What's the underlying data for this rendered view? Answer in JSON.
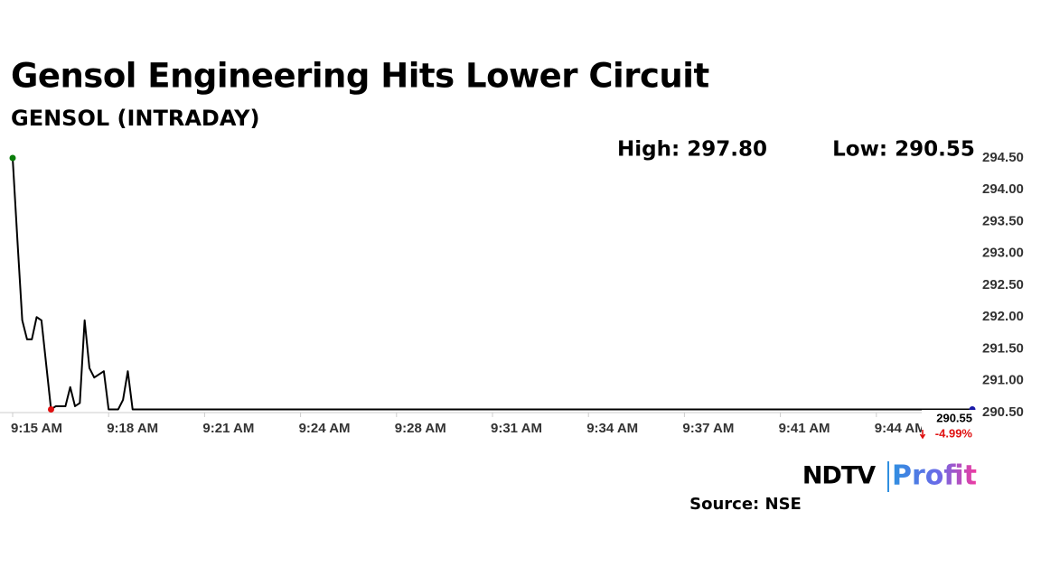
{
  "chart_data": {
    "type": "line",
    "title": "Gensol Engineering Hits Lower Circuit",
    "subtitle": "GENSOL (INTRADAY)",
    "high_label": "High: 297.80",
    "low_label": "Low: 290.55",
    "last_price": 290.55,
    "change_label": "-4.99%",
    "source": "Source: NSE",
    "logo_brand": "NDTV",
    "logo_product": "Profit",
    "color": "#000000",
    "start_color": "#0a7d0a",
    "low_color": "#e01010",
    "end_color": "#1a1aa8",
    "ylim": [
      290.5,
      294.5
    ],
    "yticks": [
      {
        "value": 290.5,
        "label": "290.50"
      },
      {
        "value": 291,
        "label": "291.00"
      },
      {
        "value": 291.5,
        "label": "291.50"
      },
      {
        "value": 292,
        "label": "292.00"
      },
      {
        "value": 292.5,
        "label": "292.50"
      },
      {
        "value": 293,
        "label": "293.00"
      },
      {
        "value": 293.5,
        "label": "293.50"
      },
      {
        "value": 294,
        "label": "294.00"
      },
      {
        "value": 294.5,
        "label": "294.50"
      }
    ],
    "categories": [
      "9:15 AM",
      null,
      null,
      null,
      null,
      null,
      null,
      null,
      null,
      null,
      null,
      null,
      null,
      null,
      null,
      null,
      null,
      null,
      null,
      null,
      "9:18 AM",
      null,
      null,
      null,
      null,
      null,
      null,
      null,
      null,
      null,
      null,
      null,
      null,
      null,
      null,
      null,
      null,
      null,
      null,
      null,
      "9:21 AM",
      null,
      null,
      null,
      null,
      null,
      null,
      null,
      null,
      null,
      null,
      null,
      null,
      null,
      null,
      null,
      null,
      null,
      null,
      null,
      "9:24 AM",
      null,
      null,
      null,
      null,
      null,
      null,
      null,
      null,
      null,
      null,
      null,
      null,
      null,
      null,
      null,
      null,
      null,
      null,
      null,
      "9:28 AM",
      null,
      null,
      null,
      null,
      null,
      null,
      null,
      null,
      null,
      null,
      null,
      null,
      null,
      null,
      null,
      null,
      null,
      null,
      null,
      "9:31 AM",
      null,
      null,
      null,
      null,
      null,
      null,
      null,
      null,
      null,
      null,
      null,
      null,
      null,
      null,
      null,
      null,
      null,
      null,
      null,
      "9:34 AM",
      null,
      null,
      null,
      null,
      null,
      null,
      null,
      null,
      null,
      null,
      null,
      null,
      null,
      null,
      null,
      null,
      null,
      null,
      null,
      "9:37 AM",
      null,
      null,
      null,
      null,
      null,
      null,
      null,
      null,
      null,
      null,
      null,
      null,
      null,
      null,
      null,
      null,
      null,
      null,
      null,
      "9:41 AM",
      null,
      null,
      null,
      null,
      null,
      null,
      null,
      null,
      null,
      null,
      null,
      null,
      null,
      null,
      null,
      null,
      null,
      null,
      null,
      "9:44 AM",
      null,
      null,
      null,
      null,
      null,
      null,
      null,
      null,
      null,
      null,
      null,
      null,
      null,
      null,
      null,
      null,
      null,
      null,
      null,
      null
    ],
    "values": [
      294.5,
      293.2,
      291.95,
      291.65,
      291.65,
      292.0,
      291.95,
      291.25,
      290.55,
      290.6,
      290.6,
      290.6,
      290.9,
      290.6,
      290.65,
      291.95,
      291.2,
      291.05,
      291.1,
      291.15,
      290.55,
      290.55,
      290.55,
      290.7,
      291.15,
      290.55,
      290.55,
      290.55,
      290.55,
      290.55,
      290.55,
      290.55,
      290.55,
      290.55,
      290.55,
      290.55,
      290.55,
      290.55,
      290.55,
      290.55,
      290.55,
      290.55,
      290.55,
      290.55,
      290.55,
      290.55,
      290.55,
      290.55,
      290.55,
      290.55,
      290.55,
      290.55,
      290.55,
      290.55,
      290.55,
      290.55,
      290.55,
      290.55,
      290.55,
      290.55,
      290.55,
      290.55,
      290.55,
      290.55,
      290.55,
      290.55,
      290.55,
      290.55,
      290.55,
      290.55,
      290.55,
      290.55,
      290.55,
      290.55,
      290.55,
      290.55,
      290.55,
      290.55,
      290.55,
      290.55,
      290.55,
      290.55,
      290.55,
      290.55,
      290.55,
      290.55,
      290.55,
      290.55,
      290.55,
      290.55,
      290.55,
      290.55,
      290.55,
      290.55,
      290.55,
      290.55,
      290.55,
      290.55,
      290.55,
      290.55,
      290.55,
      290.55,
      290.55,
      290.55,
      290.55,
      290.55,
      290.55,
      290.55,
      290.55,
      290.55,
      290.55,
      290.55,
      290.55,
      290.55,
      290.55,
      290.55,
      290.55,
      290.55,
      290.55,
      290.55,
      290.55,
      290.55,
      290.55,
      290.55,
      290.55,
      290.55,
      290.55,
      290.55,
      290.55,
      290.55,
      290.55,
      290.55,
      290.55,
      290.55,
      290.55,
      290.55,
      290.55,
      290.55,
      290.55,
      290.55,
      290.55,
      290.55,
      290.55,
      290.55,
      290.55,
      290.55,
      290.55,
      290.55,
      290.55,
      290.55,
      290.55,
      290.55,
      290.55,
      290.55,
      290.55,
      290.55,
      290.55,
      290.55,
      290.55,
      290.55,
      290.55,
      290.55,
      290.55,
      290.55,
      290.55,
      290.55,
      290.55,
      290.55,
      290.55,
      290.55,
      290.55,
      290.55,
      290.55,
      290.55,
      290.55,
      290.55,
      290.55,
      290.55,
      290.55,
      290.55,
      290.55,
      290.55,
      290.55,
      290.55,
      290.55,
      290.55,
      290.55,
      290.55,
      290.55,
      290.55,
      290.55,
      290.55,
      290.55,
      290.55,
      290.55,
      290.55,
      290.55,
      290.55,
      290.55,
      290.55,
      290.55
    ]
  }
}
